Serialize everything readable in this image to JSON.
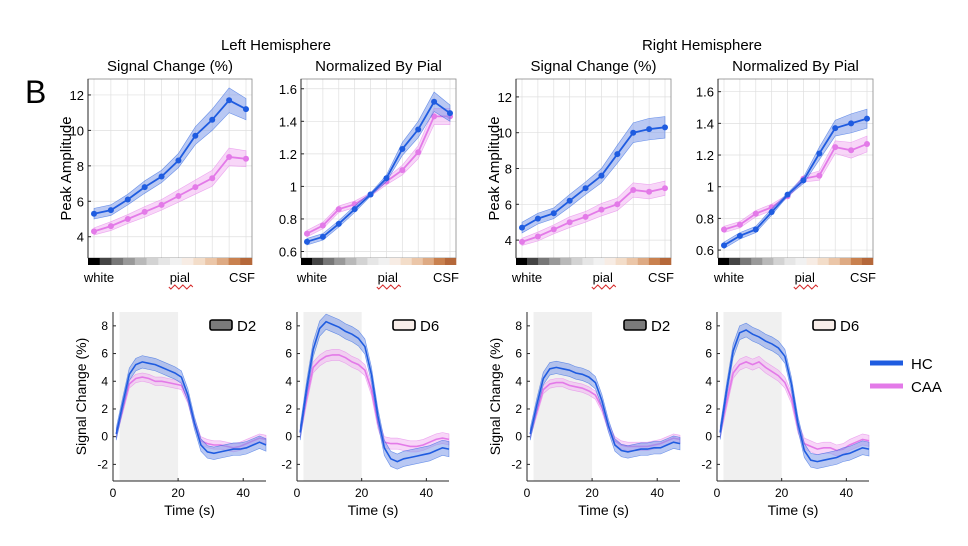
{
  "figure": {
    "panel_letter": "B",
    "legend": [
      {
        "name": "HC",
        "color": "#1f5ce0"
      },
      {
        "name": "CAA",
        "color": "#e37ae8"
      }
    ],
    "colors": {
      "HC": "#1f5ce0",
      "HC_band": "#7f9bea",
      "CAA": "#e37ae8",
      "CAA_band": "#f2b5f2",
      "stim_shade": "#f0f0f0",
      "axis": "#262626",
      "grid": "#dfdfdf"
    },
    "depth_gradient": [
      "#000000",
      "#444444",
      "#777777",
      "#999999",
      "#b9b9b9",
      "#d3d3d3",
      "#e6e6e6",
      "#f1f1f1",
      "#f7ece4",
      "#f3ddc9",
      "#ebc6a8",
      "#deaa83",
      "#c9814f",
      "#b5683a"
    ],
    "depth_labels": {
      "white": "white",
      "pial": "pial",
      "csf": "CSF"
    }
  },
  "hemispheres": [
    {
      "title": "Left Hemisphere"
    },
    {
      "title": "Right Hemisphere"
    }
  ],
  "chart_data": [
    {
      "type": "line",
      "title": "Signal Change (%)",
      "hemisphere": "Left Hemisphere",
      "ylabel": "Peak Amplitude",
      "xlabel": "",
      "x": [
        1,
        2,
        3,
        4,
        5,
        6,
        7,
        8,
        9,
        10,
        11,
        12
      ],
      "xlim": [
        0.5,
        12.5
      ],
      "ylim": [
        2.8,
        12.9
      ],
      "yticks": [
        4,
        6,
        8,
        10,
        12
      ],
      "ytick_labels": [
        "4",
        "6",
        "8",
        "10",
        "12"
      ],
      "grid": true,
      "series": [
        {
          "name": "HC",
          "values": [
            5.3,
            5.5,
            6.1,
            6.8,
            7.4,
            8.3,
            9.7,
            10.6,
            11.7,
            11.2
          ],
          "x": [
            1,
            2,
            3,
            4,
            5,
            6,
            7,
            8,
            9,
            10
          ],
          "err": [
            0.3,
            0.3,
            0.3,
            0.35,
            0.35,
            0.4,
            0.5,
            0.6,
            0.7,
            0.6
          ]
        },
        {
          "name": "CAA",
          "values": [
            4.3,
            4.6,
            5.0,
            5.4,
            5.8,
            6.3,
            6.8,
            7.3,
            8.5,
            8.4
          ],
          "x": [
            1,
            2,
            3,
            4,
            5,
            6,
            7,
            8,
            9,
            10
          ],
          "err": [
            0.2,
            0.25,
            0.25,
            0.3,
            0.3,
            0.35,
            0.4,
            0.45,
            0.5,
            0.45
          ]
        }
      ]
    },
    {
      "type": "line",
      "title": "Normalized By Pial",
      "hemisphere": "Left Hemisphere",
      "ylabel": "",
      "xlabel": "",
      "ylim": [
        0.56,
        1.66
      ],
      "yticks": [
        0.6,
        0.8,
        1.0,
        1.2,
        1.4,
        1.6
      ],
      "ytick_labels": [
        "0.6",
        "0.8",
        "1",
        "1.2",
        "1.4",
        "1.6"
      ],
      "grid": true,
      "series": [
        {
          "name": "HC",
          "values": [
            0.66,
            0.69,
            0.77,
            0.86,
            0.95,
            1.05,
            1.23,
            1.35,
            1.52,
            1.45
          ],
          "err": [
            0.02,
            0.02,
            0.02,
            0.02,
            0.01,
            0.02,
            0.04,
            0.05,
            0.06,
            0.05
          ]
        },
        {
          "name": "CAA",
          "values": [
            0.71,
            0.76,
            0.86,
            0.89,
            0.95,
            1.03,
            1.1,
            1.21,
            1.43,
            1.43
          ],
          "err": [
            0.02,
            0.02,
            0.02,
            0.02,
            0.01,
            0.02,
            0.03,
            0.04,
            0.05,
            0.05
          ]
        }
      ]
    },
    {
      "type": "line",
      "title": "Signal Change (%)",
      "hemisphere": "Right Hemisphere",
      "ylabel": "Peak Amplitude",
      "xlabel": "",
      "ylim": [
        3.0,
        13.0
      ],
      "yticks": [
        4,
        6,
        8,
        10,
        12
      ],
      "ytick_labels": [
        "4",
        "6",
        "8",
        "10",
        "12"
      ],
      "grid": true,
      "series": [
        {
          "name": "HC",
          "values": [
            4.7,
            5.2,
            5.5,
            6.2,
            6.9,
            7.6,
            8.8,
            10.0,
            10.2,
            10.3
          ],
          "err": [
            0.3,
            0.3,
            0.3,
            0.35,
            0.35,
            0.4,
            0.5,
            0.55,
            0.6,
            0.6
          ]
        },
        {
          "name": "CAA",
          "values": [
            3.9,
            4.2,
            4.6,
            5.0,
            5.3,
            5.7,
            6.0,
            6.8,
            6.7,
            6.9
          ],
          "err": [
            0.2,
            0.25,
            0.25,
            0.3,
            0.3,
            0.35,
            0.35,
            0.4,
            0.4,
            0.4
          ]
        }
      ]
    },
    {
      "type": "line",
      "title": "Normalized By Pial",
      "hemisphere": "Right Hemisphere",
      "ylabel": "",
      "xlabel": "",
      "ylim": [
        0.55,
        1.68
      ],
      "yticks": [
        0.6,
        0.8,
        1.0,
        1.2,
        1.4,
        1.6
      ],
      "ytick_labels": [
        "0.6",
        "0.8",
        "1",
        "1.2",
        "1.4",
        "1.6"
      ],
      "grid": true,
      "series": [
        {
          "name": "HC",
          "values": [
            0.63,
            0.69,
            0.73,
            0.84,
            0.95,
            1.04,
            1.21,
            1.37,
            1.4,
            1.43
          ],
          "err": [
            0.02,
            0.02,
            0.02,
            0.02,
            0.01,
            0.02,
            0.04,
            0.05,
            0.06,
            0.06
          ]
        },
        {
          "name": "CAA",
          "values": [
            0.73,
            0.76,
            0.83,
            0.87,
            0.94,
            1.05,
            1.07,
            1.25,
            1.23,
            1.27
          ],
          "err": [
            0.02,
            0.02,
            0.02,
            0.02,
            0.01,
            0.02,
            0.03,
            0.04,
            0.05,
            0.05
          ]
        }
      ]
    },
    {
      "type": "area",
      "title": "",
      "legend_tag": "D2",
      "tag_fill": "#7b7b7b",
      "xlabel": "Time (s)",
      "ylabel": "Signal Change (%)",
      "xlim": [
        0,
        47
      ],
      "ylim": [
        -3.2,
        9
      ],
      "xticks": [
        0,
        20,
        40
      ],
      "yticks": [
        -2,
        0,
        2,
        4,
        6,
        8
      ],
      "stimulus_window": [
        2,
        20
      ],
      "grid": false,
      "x": [
        1,
        3,
        5,
        7,
        9,
        11,
        13,
        15,
        17,
        19,
        21,
        23,
        25,
        27,
        29,
        31,
        33,
        35,
        37,
        39,
        41,
        43,
        45,
        47
      ],
      "series": [
        {
          "name": "HC",
          "values": [
            0.2,
            2.4,
            4.5,
            5.2,
            5.4,
            5.3,
            5.2,
            5.0,
            4.8,
            4.6,
            4.3,
            3.0,
            1.0,
            -0.6,
            -1.1,
            -1.2,
            -1.1,
            -1.0,
            -0.9,
            -0.9,
            -0.8,
            -0.6,
            -0.4,
            -0.6
          ],
          "err": 0.45
        },
        {
          "name": "CAA",
          "values": [
            0.2,
            2.0,
            3.8,
            4.2,
            4.3,
            4.2,
            4.0,
            4.0,
            3.9,
            3.8,
            3.7,
            2.7,
            1.0,
            -0.3,
            -0.5,
            -0.6,
            -0.6,
            -0.7,
            -0.8,
            -0.7,
            -0.5,
            -0.3,
            -0.1,
            -0.2
          ],
          "err": 0.3
        }
      ]
    },
    {
      "type": "area",
      "title": "",
      "legend_tag": "D6",
      "tag_fill": "#f9eee9",
      "xlabel": "Time (s)",
      "ylabel": "",
      "xlim": [
        0,
        47
      ],
      "ylim": [
        -3.2,
        9
      ],
      "xticks": [
        0,
        20,
        40
      ],
      "yticks": [
        -2,
        0,
        2,
        4,
        6,
        8
      ],
      "stimulus_window": [
        2,
        20
      ],
      "grid": false,
      "x": [
        1,
        3,
        5,
        7,
        9,
        11,
        13,
        15,
        17,
        19,
        21,
        23,
        25,
        27,
        29,
        31,
        33,
        35,
        37,
        39,
        41,
        43,
        45,
        47
      ],
      "series": [
        {
          "name": "HC",
          "values": [
            0.3,
            3.5,
            6.3,
            7.8,
            8.3,
            8.1,
            7.9,
            7.6,
            7.4,
            7.1,
            6.5,
            4.5,
            1.5,
            -0.8,
            -1.6,
            -1.8,
            -1.6,
            -1.5,
            -1.4,
            -1.3,
            -1.2,
            -1.0,
            -0.8,
            -0.9
          ],
          "err": 0.55
        },
        {
          "name": "CAA",
          "values": [
            0.3,
            2.8,
            5.0,
            5.5,
            5.8,
            5.9,
            5.9,
            5.7,
            5.4,
            5.2,
            4.8,
            3.4,
            1.0,
            -0.4,
            -0.5,
            -0.5,
            -0.6,
            -0.7,
            -0.7,
            -0.6,
            -0.4,
            -0.2,
            -0.1,
            -0.2
          ],
          "err": 0.4
        }
      ]
    },
    {
      "type": "area",
      "title": "",
      "legend_tag": "D2",
      "tag_fill": "#7b7b7b",
      "xlabel": "Time (s)",
      "ylabel": "Signal Change (%)",
      "xlim": [
        0,
        47
      ],
      "ylim": [
        -3.2,
        9
      ],
      "xticks": [
        0,
        20,
        40
      ],
      "yticks": [
        -2,
        0,
        2,
        4,
        6,
        8
      ],
      "stimulus_window": [
        2,
        20
      ],
      "grid": false,
      "x": [
        1,
        3,
        5,
        7,
        9,
        11,
        13,
        15,
        17,
        19,
        21,
        23,
        25,
        27,
        29,
        31,
        33,
        35,
        37,
        39,
        41,
        43,
        45,
        47
      ],
      "series": [
        {
          "name": "HC",
          "values": [
            0.2,
            2.3,
            4.2,
            4.9,
            5.0,
            4.9,
            4.8,
            4.6,
            4.5,
            4.3,
            3.9,
            2.6,
            0.8,
            -0.6,
            -1.0,
            -1.1,
            -1.0,
            -0.9,
            -0.9,
            -0.8,
            -0.8,
            -0.6,
            -0.4,
            -0.5
          ],
          "err": 0.45
        },
        {
          "name": "CAA",
          "values": [
            0.2,
            1.8,
            3.4,
            3.8,
            3.9,
            3.9,
            3.7,
            3.6,
            3.5,
            3.3,
            3.0,
            2.1,
            0.7,
            -0.3,
            -0.6,
            -0.7,
            -0.7,
            -0.7,
            -0.7,
            -0.6,
            -0.5,
            -0.3,
            -0.1,
            -0.2
          ],
          "err": 0.3
        }
      ]
    },
    {
      "type": "area",
      "title": "",
      "legend_tag": "D6",
      "tag_fill": "#f9eee9",
      "xlabel": "Time (s)",
      "ylabel": "",
      "xlim": [
        0,
        47
      ],
      "ylim": [
        -3.2,
        9
      ],
      "xticks": [
        0,
        20,
        40
      ],
      "yticks": [
        -2,
        0,
        2,
        4,
        6,
        8
      ],
      "stimulus_window": [
        2,
        20
      ],
      "grid": false,
      "x": [
        1,
        3,
        5,
        7,
        9,
        11,
        13,
        15,
        17,
        19,
        21,
        23,
        25,
        27,
        29,
        31,
        33,
        35,
        37,
        39,
        41,
        43,
        45,
        47
      ],
      "series": [
        {
          "name": "HC",
          "values": [
            0.3,
            3.4,
            6.2,
            7.5,
            7.7,
            7.4,
            7.2,
            6.9,
            6.7,
            6.4,
            5.8,
            3.8,
            1.0,
            -1.0,
            -1.7,
            -1.8,
            -1.7,
            -1.6,
            -1.5,
            -1.3,
            -1.2,
            -1.0,
            -0.8,
            -0.9
          ],
          "err": 0.5
        },
        {
          "name": "CAA",
          "values": [
            0.3,
            2.5,
            4.6,
            5.2,
            5.4,
            5.2,
            5.4,
            5.0,
            4.7,
            4.4,
            3.9,
            2.8,
            0.7,
            -0.5,
            -0.7,
            -0.9,
            -0.8,
            -0.8,
            -1.0,
            -0.9,
            -0.6,
            -0.4,
            -0.2,
            -0.3
          ],
          "err": 0.4
        }
      ]
    }
  ]
}
